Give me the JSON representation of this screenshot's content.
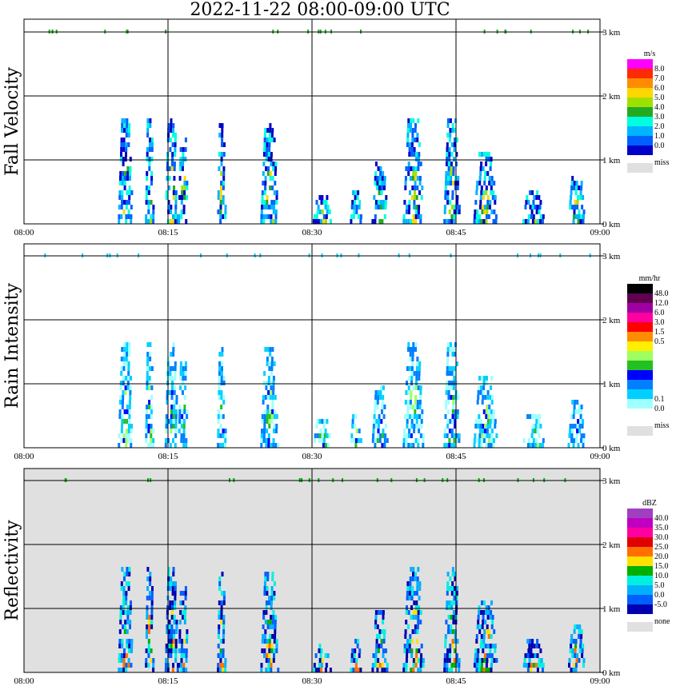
{
  "title": "2022-11-22   08:00-09:00 UTC",
  "x_ticks": [
    "08:00",
    "08:15",
    "08:30",
    "08:45",
    "09:00"
  ],
  "y_ticks": [
    "0 km",
    "1 km",
    "2 km",
    "3 km"
  ],
  "chart_data": [
    {
      "type": "heatmap",
      "ylabel": "Fall Velocity",
      "units": "m/s",
      "colorbar": {
        "labels": [
          "8.0",
          "7.0",
          "6.0",
          "5.0",
          "4.0",
          "3.0",
          "2.0",
          "1.0",
          "0.0"
        ],
        "colors": [
          "#ff00ff",
          "#ff2a00",
          "#ff8c00",
          "#ffd700",
          "#a0e000",
          "#22aa22",
          "#00ffe0",
          "#00b4ff",
          "#0060ff",
          "#0000c8"
        ],
        "missing_label": "miss",
        "missing_color": "#e0e0e0"
      },
      "background": "#ffffff",
      "xlim": [
        "08:00",
        "09:00"
      ],
      "ylim_km": [
        0,
        3.2
      ]
    },
    {
      "type": "heatmap",
      "ylabel": "Rain Intensity",
      "units": "mm/hr",
      "colorbar": {
        "labels": [
          "48.0",
          "12.0",
          "6.0",
          "3.0",
          "1.5",
          "0.5",
          "0.1",
          "0.0"
        ],
        "colors": [
          "#000000",
          "#600050",
          "#a000a0",
          "#ff00a0",
          "#ff0000",
          "#ff8c00",
          "#ffee00",
          "#a0ff60",
          "#22c022",
          "#0000ff",
          "#0080ff",
          "#00d0ff",
          "#a0ffff",
          "#ffffff"
        ],
        "missing_label": "miss",
        "missing_color": "#e0e0e0"
      },
      "background": "#ffffff",
      "xlim": [
        "08:00",
        "09:00"
      ],
      "ylim_km": [
        0,
        3.2
      ]
    },
    {
      "type": "heatmap",
      "ylabel": "Reflectivity",
      "units": "dBZ",
      "colorbar": {
        "labels": [
          "40.0",
          "35.0",
          "30.0",
          "25.0",
          "20.0",
          "15.0",
          "10.0",
          "5.0",
          "0.0",
          "-5.0"
        ],
        "colors": [
          "#a040c0",
          "#c000c0",
          "#ff00a0",
          "#e00000",
          "#ff7000",
          "#ffe000",
          "#00b000",
          "#00f0e0",
          "#00b0ff",
          "#0060ff",
          "#0000b0"
        ],
        "missing_label": "none",
        "missing_color": "#e0e0e0"
      },
      "background": "#e0e0e0",
      "xlim": [
        "08:00",
        "09:00"
      ],
      "ylim_km": [
        0,
        3.2
      ]
    }
  ]
}
